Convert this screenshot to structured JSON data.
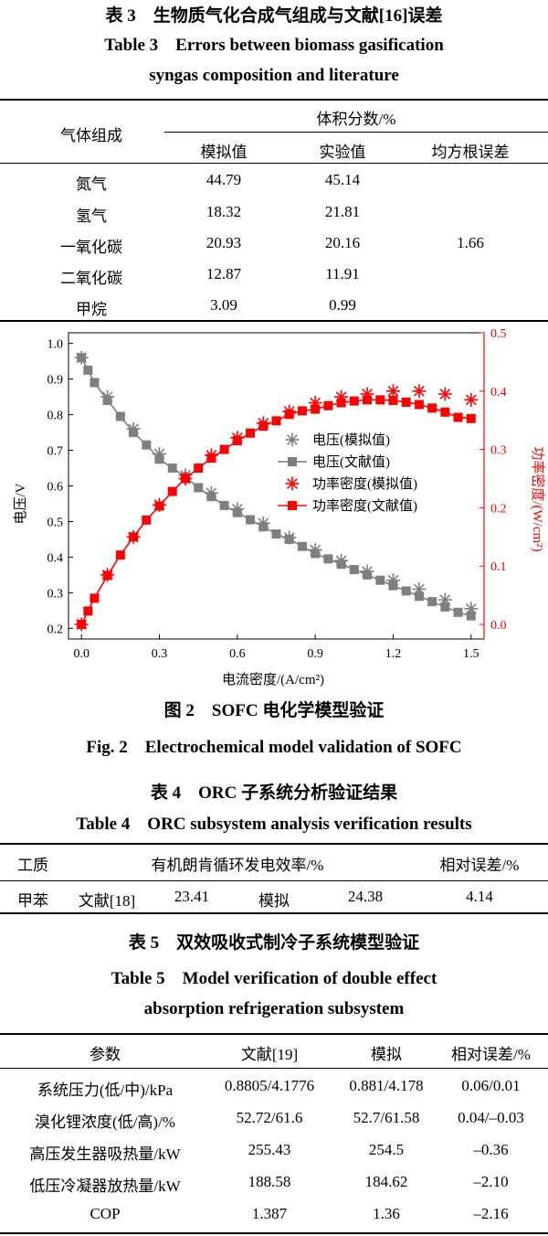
{
  "table3": {
    "title_cn": "表 3　生物质气化合成气组成与文献[16]误差",
    "title_en_1": "Table 3　Errors between biomass gasification",
    "title_en_2": "syngas composition and literature",
    "head_gas": "气体组成",
    "head_volume": "体积分数/%",
    "head_sim": "模拟值",
    "head_exp": "实验值",
    "head_rmse": "均方根误差",
    "rows": [
      {
        "gas": "氮气",
        "sim": "44.79",
        "exp": "45.14"
      },
      {
        "gas": "氢气",
        "sim": "18.32",
        "exp": "21.81"
      },
      {
        "gas": "一氧化碳",
        "sim": "20.93",
        "exp": "20.16"
      },
      {
        "gas": "二氧化碳",
        "sim": "12.87",
        "exp": "11.91"
      },
      {
        "gas": "甲烷",
        "sim": "3.09",
        "exp": "0.99"
      }
    ],
    "rmse": "1.66"
  },
  "figure2": {
    "caption_cn": "图 2　SOFC 电化学模型验证",
    "caption_en": "Fig. 2　Electrochemical model validation of SOFC"
  },
  "chart_data": {
    "type": "line",
    "title": "",
    "xlabel": "电流密度/(A/cm²)",
    "ylabel": "电压/V",
    "y2label": "功率密度/(W/cm²)",
    "xlim": [
      -0.05,
      1.55
    ],
    "ylim": [
      0.17,
      1.03
    ],
    "y2lim": [
      -0.025,
      0.5
    ],
    "xticks": [
      "0.0",
      "0.3",
      "0.6",
      "0.9",
      "1.2",
      "1.5"
    ],
    "yticks": [
      "0.2",
      "0.3",
      "0.4",
      "0.5",
      "0.6",
      "0.7",
      "0.8",
      "0.9",
      "1.0"
    ],
    "y2ticks": [
      "0.0",
      "0.1",
      "0.2",
      "0.3",
      "0.4",
      "0.5"
    ],
    "legend_position": "center-right",
    "colors": {
      "voltage": "#7f7f7f",
      "power": "#ff0000"
    },
    "series": [
      {
        "name": "电压(模拟值)",
        "axis": "left",
        "marker": "asterisk",
        "color": "#7f7f7f",
        "x": [
          0.0,
          0.1,
          0.2,
          0.3,
          0.4,
          0.5,
          0.6,
          0.7,
          0.8,
          0.9,
          1.0,
          1.1,
          1.2,
          1.3,
          1.4,
          1.5
        ],
        "y": [
          0.96,
          0.85,
          0.76,
          0.69,
          0.63,
          0.58,
          0.535,
          0.495,
          0.455,
          0.42,
          0.39,
          0.36,
          0.335,
          0.31,
          0.28,
          0.255
        ]
      },
      {
        "name": "电压(文献值)",
        "axis": "left",
        "marker": "square-line",
        "color": "#7f7f7f",
        "x": [
          0.0,
          0.025,
          0.05,
          0.1,
          0.15,
          0.2,
          0.25,
          0.3,
          0.35,
          0.4,
          0.45,
          0.5,
          0.55,
          0.6,
          0.65,
          0.7,
          0.75,
          0.8,
          0.85,
          0.9,
          0.95,
          1.0,
          1.05,
          1.1,
          1.15,
          1.2,
          1.25,
          1.3,
          1.35,
          1.4,
          1.45,
          1.5
        ],
        "y": [
          0.96,
          0.925,
          0.89,
          0.84,
          0.795,
          0.75,
          0.715,
          0.675,
          0.65,
          0.625,
          0.595,
          0.57,
          0.545,
          0.525,
          0.505,
          0.485,
          0.465,
          0.45,
          0.43,
          0.41,
          0.395,
          0.38,
          0.365,
          0.35,
          0.335,
          0.32,
          0.305,
          0.29,
          0.275,
          0.26,
          0.245,
          0.235
        ]
      },
      {
        "name": "功率密度(模拟值)",
        "axis": "right",
        "marker": "asterisk",
        "color": "#ff0000",
        "x": [
          0.0,
          0.1,
          0.2,
          0.3,
          0.4,
          0.5,
          0.6,
          0.7,
          0.8,
          0.9,
          1.0,
          1.1,
          1.2,
          1.3,
          1.4,
          1.5
        ],
        "y": [
          0.0,
          0.085,
          0.15,
          0.205,
          0.25,
          0.29,
          0.32,
          0.345,
          0.365,
          0.38,
          0.39,
          0.395,
          0.4,
          0.4,
          0.395,
          0.385
        ]
      },
      {
        "name": "功率密度(文献值)",
        "axis": "right",
        "marker": "square-line",
        "color": "#ff0000",
        "x": [
          0.0,
          0.025,
          0.05,
          0.1,
          0.15,
          0.2,
          0.25,
          0.3,
          0.35,
          0.4,
          0.45,
          0.5,
          0.55,
          0.6,
          0.65,
          0.7,
          0.75,
          0.8,
          0.85,
          0.9,
          0.95,
          1.0,
          1.05,
          1.1,
          1.15,
          1.2,
          1.25,
          1.3,
          1.35,
          1.4,
          1.45,
          1.5
        ],
        "y": [
          0.0,
          0.023,
          0.045,
          0.084,
          0.119,
          0.15,
          0.179,
          0.203,
          0.228,
          0.25,
          0.268,
          0.285,
          0.3,
          0.315,
          0.328,
          0.34,
          0.349,
          0.36,
          0.366,
          0.369,
          0.375,
          0.38,
          0.383,
          0.385,
          0.385,
          0.384,
          0.381,
          0.377,
          0.371,
          0.364,
          0.355,
          0.353
        ]
      }
    ]
  },
  "table4": {
    "title_cn": "表 4　ORC 子系统分析验证结果",
    "title_en": "Table 4　ORC subsystem analysis verification results",
    "head_medium": "工质",
    "head_eff": "有机朗肯循环发电效率/%",
    "head_err": "相对误差/%",
    "medium": "甲苯",
    "lit_label": "文献[18]",
    "lit_value": "23.41",
    "sim_label": "模拟",
    "sim_value": "24.38",
    "err": "4.14"
  },
  "table5": {
    "title_cn": "表 5　双效吸收式制冷子系统模型验证",
    "title_en_1": "Table 5　Model verification of double effect",
    "title_en_2": "absorption refrigeration subsystem",
    "head_param": "参数",
    "head_lit": "文献[19]",
    "head_sim": "模拟",
    "head_err": "相对误差/%",
    "rows": [
      {
        "param": "系统压力(低/中)/kPa",
        "lit": "0.8805/4.1776",
        "sim": "0.881/4.178",
        "err": "0.06/0.01"
      },
      {
        "param": "溴化锂浓度(低/高)/%",
        "lit": "52.72/61.6",
        "sim": "52.7/61.58",
        "err": "0.04/–0.03"
      },
      {
        "param": "高压发生器吸热量/kW",
        "lit": "255.43",
        "sim": "254.5",
        "err": "–0.36"
      },
      {
        "param": "低压冷凝器放热量/kW",
        "lit": "188.58",
        "sim": "184.62",
        "err": "–2.10"
      },
      {
        "param": "COP",
        "lit": "1.387",
        "sim": "1.36",
        "err": "–2.16"
      }
    ]
  }
}
